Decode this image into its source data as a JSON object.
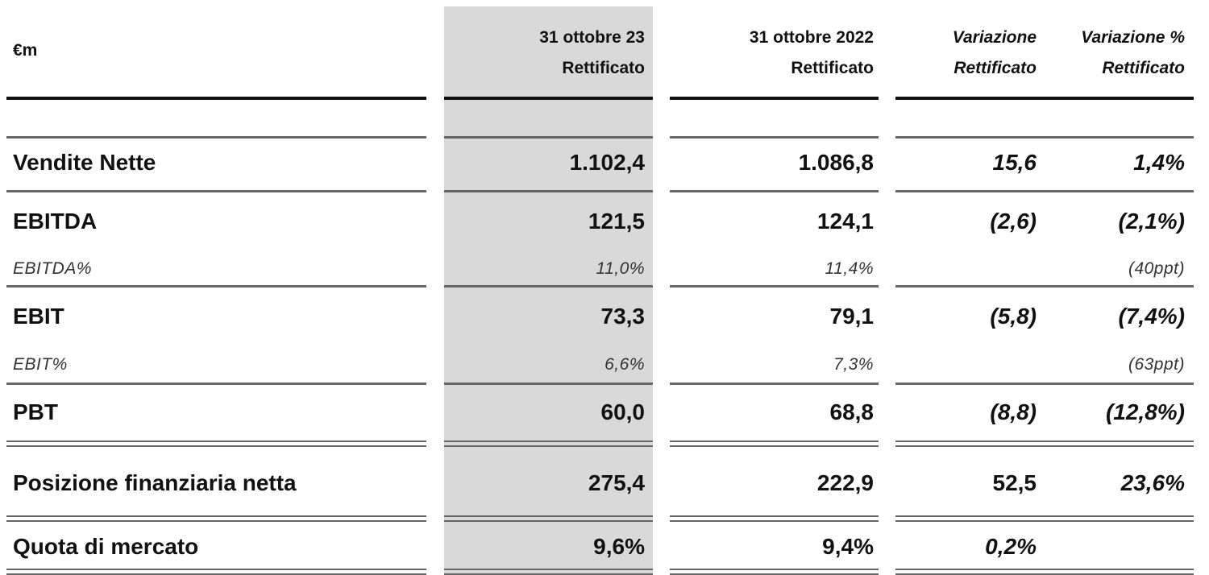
{
  "header": {
    "unit": "€m",
    "col1": [
      "31 ottobre 23",
      "Rettificato"
    ],
    "col2": [
      "31 ottobre 2022",
      "Rettificato"
    ],
    "col3": [
      "Variazione",
      "Rettificato"
    ],
    "col4": [
      "Variazione %",
      "Rettificato"
    ]
  },
  "rows": [
    {
      "label": "Vendite Nette",
      "v1": "1.102,4",
      "v2": "1.086,8",
      "v3": "15,6",
      "v4": "1,4%"
    },
    {
      "label": "EBITDA",
      "v1": "121,5",
      "v2": "124,1",
      "v3": "(2,6)",
      "v4": "(2,1%)"
    },
    {
      "label": "EBITDA%",
      "v1": "11,0%",
      "v2": "11,4%",
      "v3": "",
      "v4": "(40ppt)"
    },
    {
      "label": "EBIT",
      "v1": "73,3",
      "v2": "79,1",
      "v3": "(5,8)",
      "v4": "(7,4%)"
    },
    {
      "label": "EBIT%",
      "v1": "6,6%",
      "v2": "7,3%",
      "v3": "",
      "v4": "(63ppt)"
    },
    {
      "label": "PBT",
      "v1": "60,0",
      "v2": "68,8",
      "v3": "(8,8)",
      "v4": "(12,8%)"
    },
    {
      "label": "Posizione finanziaria netta",
      "v1": "275,4",
      "v2": "222,9",
      "v3": "52,5",
      "v4": "23,6%"
    },
    {
      "label": "Quota di mercato",
      "v1": "9,6%",
      "v2": "9,4%",
      "v3": "0,2%",
      "v4": ""
    }
  ]
}
